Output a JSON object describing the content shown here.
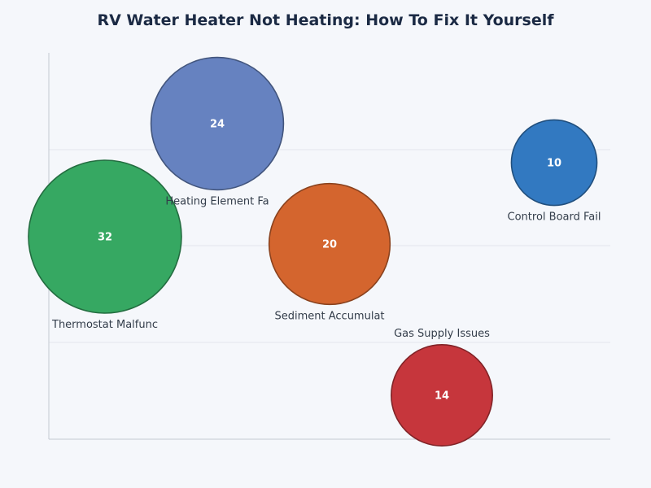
{
  "chart_data": {
    "type": "bubble",
    "title": "RV Water Heater Not Heating: How To Fix It Yourself",
    "xlabel": "",
    "ylabel": "",
    "grid": true,
    "series": [
      {
        "points": [
          {
            "label": "Thermostat Malfunc",
            "value": 32,
            "color": "#36a862",
            "label_position": "below"
          },
          {
            "label": "Heating Element Fa",
            "value": 24,
            "color": "#6682c0",
            "label_position": "below"
          },
          {
            "label": "Sediment Accumulat",
            "value": 20,
            "color": "#d4652e",
            "label_position": "below"
          },
          {
            "label": "Gas Supply Issues",
            "value": 14,
            "color": "#c6363c",
            "label_position": "above"
          },
          {
            "label": "Control Board Fail",
            "value": 10,
            "color": "#3279c1",
            "label_position": "below"
          }
        ]
      }
    ]
  }
}
